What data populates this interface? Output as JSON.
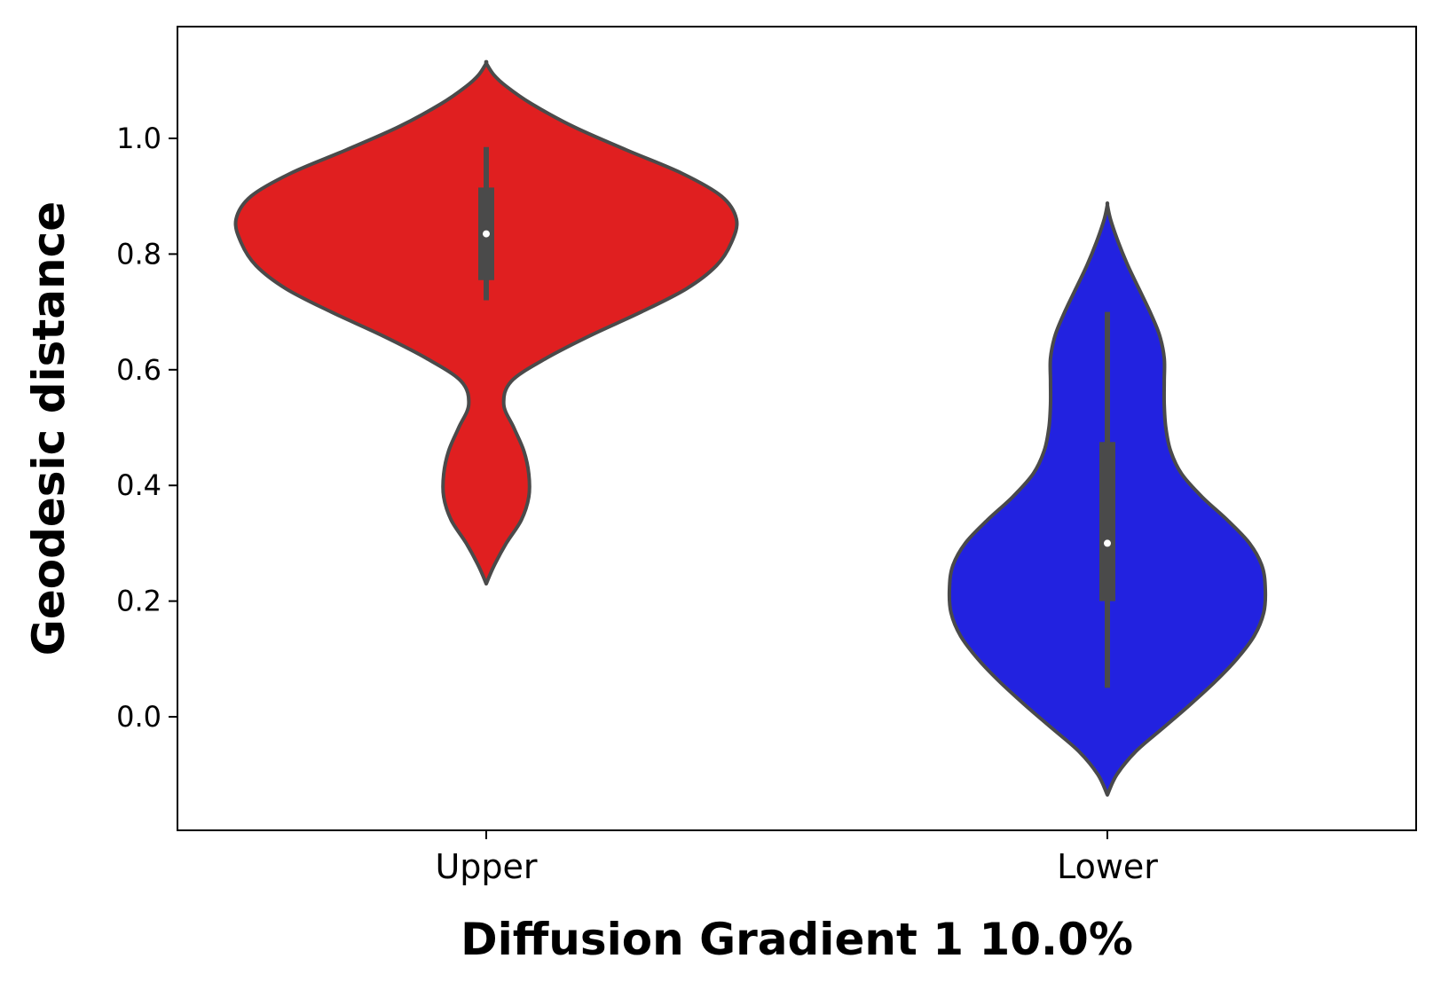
{
  "chart_data": {
    "type": "violin",
    "title": "",
    "xlabel": "Diffusion Gradient 1 10.0%",
    "ylabel": "Geodesic distance",
    "ylim": [
      -0.195,
      1.195
    ],
    "yticks": [
      "0.0",
      "0.2",
      "0.4",
      "0.6",
      "0.8",
      "1.0"
    ],
    "grid": false,
    "categories": [
      "Upper",
      "Lower"
    ],
    "series": [
      {
        "category": "Upper",
        "color": "#e01f20",
        "min": 0.23,
        "max": 1.13,
        "whisker_low": 0.72,
        "q1": 0.755,
        "median": 0.835,
        "q3": 0.915,
        "whisker_high": 0.985,
        "density_profile": [
          [
            0.23,
            0.0
          ],
          [
            0.26,
            0.03
          ],
          [
            0.3,
            0.08
          ],
          [
            0.34,
            0.14
          ],
          [
            0.38,
            0.17
          ],
          [
            0.42,
            0.17
          ],
          [
            0.46,
            0.15
          ],
          [
            0.5,
            0.11
          ],
          [
            0.54,
            0.07
          ],
          [
            0.58,
            0.1
          ],
          [
            0.62,
            0.24
          ],
          [
            0.66,
            0.42
          ],
          [
            0.7,
            0.62
          ],
          [
            0.74,
            0.8
          ],
          [
            0.78,
            0.92
          ],
          [
            0.82,
            0.98
          ],
          [
            0.86,
            1.0
          ],
          [
            0.9,
            0.94
          ],
          [
            0.94,
            0.78
          ],
          [
            0.98,
            0.56
          ],
          [
            1.02,
            0.35
          ],
          [
            1.06,
            0.18
          ],
          [
            1.09,
            0.08
          ],
          [
            1.11,
            0.03
          ],
          [
            1.13,
            0.0
          ]
        ]
      },
      {
        "category": "Lower",
        "color": "#2222e0",
        "min": -0.135,
        "max": 0.885,
        "whisker_low": 0.05,
        "q1": 0.2,
        "median": 0.3,
        "q3": 0.475,
        "whisker_high": 0.7,
        "density_profile": [
          [
            -0.135,
            0.0
          ],
          [
            -0.1,
            0.06
          ],
          [
            -0.06,
            0.18
          ],
          [
            -0.02,
            0.35
          ],
          [
            0.02,
            0.52
          ],
          [
            0.06,
            0.68
          ],
          [
            0.1,
            0.82
          ],
          [
            0.14,
            0.93
          ],
          [
            0.18,
            0.99
          ],
          [
            0.22,
            1.0
          ],
          [
            0.26,
            0.98
          ],
          [
            0.3,
            0.9
          ],
          [
            0.34,
            0.76
          ],
          [
            0.38,
            0.6
          ],
          [
            0.42,
            0.47
          ],
          [
            0.46,
            0.4
          ],
          [
            0.5,
            0.37
          ],
          [
            0.54,
            0.36
          ],
          [
            0.58,
            0.36
          ],
          [
            0.62,
            0.36
          ],
          [
            0.66,
            0.33
          ],
          [
            0.7,
            0.27
          ],
          [
            0.74,
            0.2
          ],
          [
            0.78,
            0.13
          ],
          [
            0.82,
            0.07
          ],
          [
            0.86,
            0.02
          ],
          [
            0.885,
            0.0
          ]
        ]
      }
    ]
  }
}
